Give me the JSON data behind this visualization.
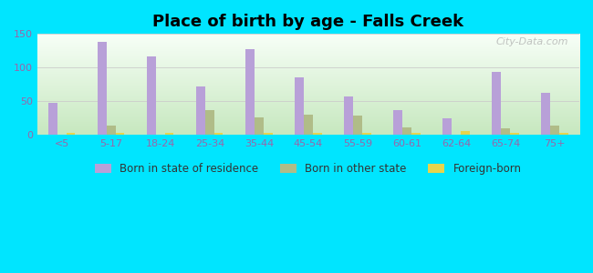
{
  "title": "Place of birth by age - Falls Creek",
  "categories": [
    "<5",
    "5-17",
    "18-24",
    "25-34",
    "35-44",
    "45-54",
    "55-59",
    "60-61",
    "62-64",
    "65-74",
    "75+"
  ],
  "born_in_state": [
    48,
    138,
    117,
    72,
    128,
    85,
    57,
    36,
    24,
    94,
    62
  ],
  "born_other_state": [
    0,
    14,
    0,
    36,
    26,
    30,
    29,
    11,
    0,
    10,
    13
  ],
  "foreign_born": [
    2,
    2,
    2,
    2,
    2,
    2,
    2,
    2,
    5,
    2,
    2
  ],
  "bar_color_state": "#b8a0d8",
  "bar_color_other": "#b0bc88",
  "bar_color_foreign": "#e8d44d",
  "ylim": [
    0,
    150
  ],
  "yticks": [
    0,
    50,
    100,
    150
  ],
  "bg_color": "#00e5ff",
  "legend_labels": [
    "Born in state of residence",
    "Born in other state",
    "Foreign-born"
  ],
  "watermark": "City-Data.com",
  "tick_color": "#9966aa",
  "bar_width": 0.18
}
